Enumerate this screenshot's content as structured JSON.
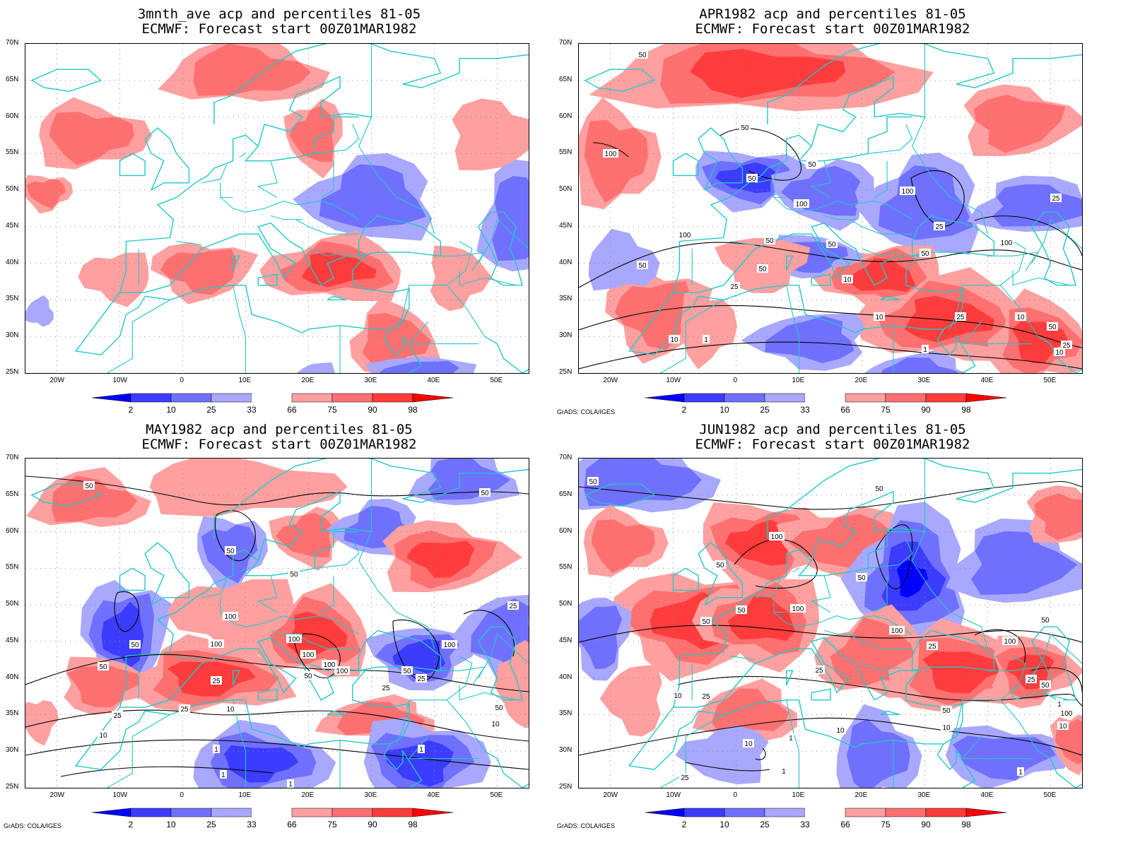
{
  "panels": [
    {
      "line1": "3mnth_ave acp and percentiles 81-05",
      "line2": "ECMWF: Forecast start 00Z01MAR1982",
      "credit": ""
    },
    {
      "line1": "APR1982 acp and percentiles 81-05",
      "line2": "ECMWF: Forecast start 00Z01MAR1982",
      "credit": "GrADS: COLA/IGES"
    },
    {
      "line1": "MAY1982 acp and percentiles 81-05",
      "line2": "ECMWF: Forecast start 00Z01MAR1982",
      "credit": "GrADS: COLA/IGES"
    },
    {
      "line1": "JUN1982 acp and percentiles 81-05",
      "line2": "ECMWF: Forecast start 00Z01MAR1982",
      "credit": "GrADS: COLA/IGES"
    }
  ],
  "lat_labels": [
    "70N",
    "65N",
    "60N",
    "55N",
    "50N",
    "45N",
    "40N",
    "35N",
    "30N",
    "25N"
  ],
  "lon_labels": [
    "20W",
    "10W",
    "0",
    "10E",
    "20E",
    "30E",
    "40E",
    "50E"
  ],
  "colorbar": {
    "labels": [
      "2",
      "10",
      "25",
      "33",
      "66",
      "75",
      "90",
      "98"
    ],
    "colors": [
      "#0000ff",
      "#3c3cff",
      "#7070ff",
      "#a8a8ff",
      "#ffffff",
      "#ffa0a0",
      "#ff7070",
      "#ff3c3c",
      "#ff0000"
    ]
  },
  "colors": {
    "coast": "#20c8c8",
    "contour": "#000000",
    "grid": "#888888"
  },
  "contour_labels": [
    [],
    [
      "50",
      "100",
      "50",
      "50",
      "50",
      "100",
      "25",
      "100",
      "100",
      "50",
      "50",
      "50",
      "50",
      "25",
      "25",
      "50",
      "25",
      "10",
      "25",
      "10",
      "10",
      "1",
      "1",
      "50",
      "10",
      "25",
      "10",
      "100"
    ],
    [
      "50",
      "50",
      "50",
      "50",
      "50",
      "100",
      "100",
      "100",
      "100",
      "100",
      "100",
      "50",
      "50",
      "25",
      "25",
      "25",
      "50",
      "25",
      "10",
      "50",
      "25",
      "10",
      "1",
      "1",
      "1",
      "1",
      "100",
      "25",
      "10"
    ],
    [
      "50",
      "50",
      "50",
      "50",
      "100",
      "50",
      "50",
      "100",
      "100",
      "100",
      "50",
      "25",
      "25",
      "25",
      "50",
      "10",
      "10",
      "10",
      "1",
      "1",
      "1",
      "25",
      "10",
      "100",
      "50",
      "25",
      "10",
      "1"
    ]
  ]
}
